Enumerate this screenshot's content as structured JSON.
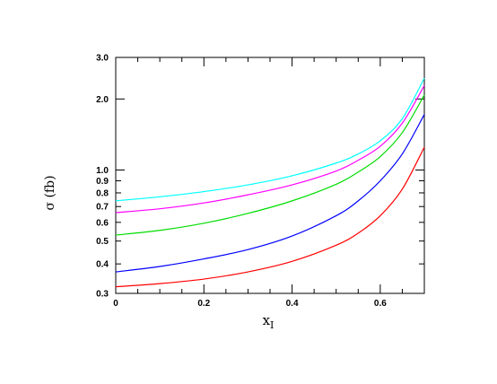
{
  "chart_data": {
    "type": "line",
    "xlabel": "x",
    "xlabel_sub": "I",
    "ylabel": "σ (fb)",
    "yscale": "log",
    "xlim": [
      0,
      0.7
    ],
    "ylim": [
      0.3,
      3.0
    ],
    "x_ticks": [
      {
        "value": 0,
        "label": "0"
      },
      {
        "value": 0.2,
        "label": "0.2"
      },
      {
        "value": 0.4,
        "label": "0.4"
      },
      {
        "value": 0.6,
        "label": "0.6"
      }
    ],
    "y_ticks": [
      {
        "value": 0.3,
        "label": "0.3"
      },
      {
        "value": 0.4,
        "label": "0.4"
      },
      {
        "value": 0.5,
        "label": "0.5"
      },
      {
        "value": 0.6,
        "label": "0.6"
      },
      {
        "value": 0.7,
        "label": "0.7"
      },
      {
        "value": 0.8,
        "label": "0.8"
      },
      {
        "value": 0.9,
        "label": "0.9"
      },
      {
        "value": 1.0,
        "label": "1.0"
      },
      {
        "value": 2.0,
        "label": "2.0"
      },
      {
        "value": 3.0,
        "label": "3.0"
      }
    ],
    "grid": false,
    "legend": "none",
    "x": [
      0,
      0.1,
      0.2,
      0.3,
      0.4,
      0.5,
      0.55,
      0.6,
      0.65,
      0.7
    ],
    "series": [
      {
        "color": "#ff0000",
        "values": [
          0.32,
          0.33,
          0.345,
          0.37,
          0.41,
          0.48,
          0.54,
          0.64,
          0.83,
          1.25
        ]
      },
      {
        "color": "#0000ff",
        "values": [
          0.37,
          0.39,
          0.42,
          0.46,
          0.525,
          0.64,
          0.74,
          0.9,
          1.17,
          1.72
        ]
      },
      {
        "color": "#00dd00",
        "values": [
          0.53,
          0.555,
          0.595,
          0.655,
          0.74,
          0.87,
          0.98,
          1.14,
          1.44,
          2.08
        ]
      },
      {
        "color": "#ff00ff",
        "values": [
          0.66,
          0.685,
          0.725,
          0.785,
          0.865,
          0.99,
          1.1,
          1.26,
          1.58,
          2.28
        ]
      },
      {
        "color": "#00ffff",
        "values": [
          0.74,
          0.77,
          0.81,
          0.865,
          0.945,
          1.07,
          1.17,
          1.33,
          1.65,
          2.45
        ]
      }
    ]
  }
}
